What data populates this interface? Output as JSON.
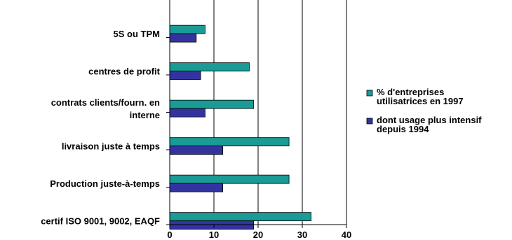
{
  "chart_data": {
    "type": "bar",
    "orientation": "horizontal",
    "categories": [
      [
        "5S ou TPM"
      ],
      [
        "centres de profit"
      ],
      [
        "contrats clients/fourn. en",
        "interne"
      ],
      [
        "livraison juste à temps"
      ],
      [
        "Production juste-à-temps"
      ],
      [
        "certif ISO 9001, 9002, EAQF"
      ]
    ],
    "series": [
      {
        "name": "% d'entreprises utilisatrices en 1997",
        "legend_lines": [
          "% d'entreprises",
          "utilisatrices en 1997"
        ],
        "color": "#1a9b96",
        "values": [
          8,
          18,
          19,
          27,
          27,
          32
        ]
      },
      {
        "name": "dont usage plus intensif depuis 1994",
        "legend_lines": [
          "dont usage plus intensif",
          "depuis 1994"
        ],
        "color": "#3333a0",
        "values": [
          6,
          7,
          8,
          12,
          12,
          19
        ]
      }
    ],
    "xlim": [
      0,
      40
    ],
    "xticks": [
      0,
      10,
      20,
      30,
      40
    ],
    "grid": "vertical",
    "legend": "right",
    "title": "",
    "xlabel": "",
    "ylabel": ""
  }
}
